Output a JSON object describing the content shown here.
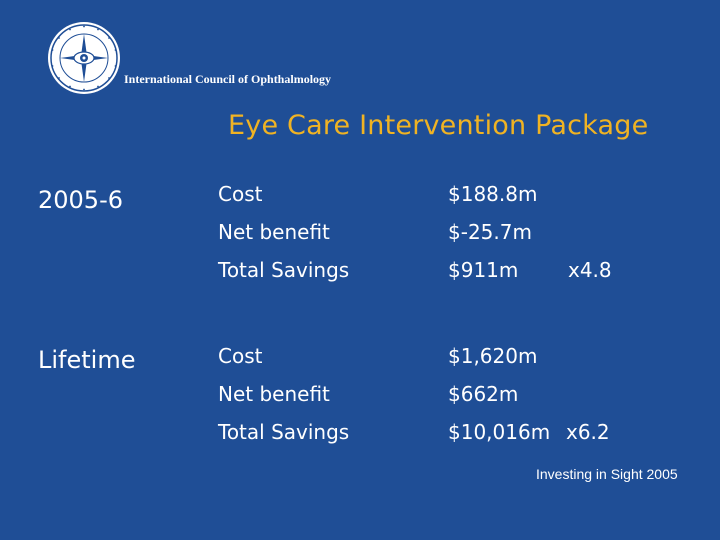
{
  "header": {
    "organization": "International Council of Ophthalmology"
  },
  "title": "Eye Care Intervention Package",
  "sections": [
    {
      "period": "2005-6",
      "rows": [
        {
          "label": "Cost",
          "value": "$188.8m",
          "multiplier": ""
        },
        {
          "label": "Net benefit",
          "value": "$-25.7m",
          "multiplier": ""
        },
        {
          "label": "Total Savings",
          "value": "$911m",
          "multiplier": "x4.8"
        }
      ]
    },
    {
      "period": "Lifetime",
      "rows": [
        {
          "label": "Cost",
          "value": "$1,620m",
          "multiplier": ""
        },
        {
          "label": "Net benefit",
          "value": "$662m",
          "multiplier": ""
        },
        {
          "label": "Total Savings",
          "value": "$10,016m",
          "multiplier": "x6.2"
        }
      ]
    }
  ],
  "footer": "Investing in Sight 2005",
  "colors": {
    "background": "#1f4e96",
    "title": "#f0b323",
    "text": "#ffffff"
  },
  "icons": {
    "logo": "ico-seal-icon"
  }
}
